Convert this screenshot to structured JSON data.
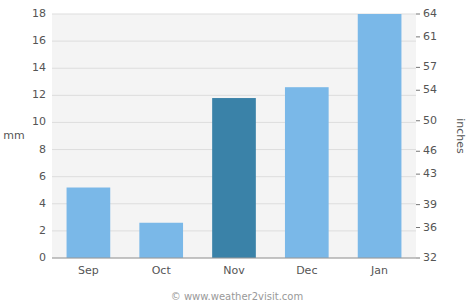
{
  "chart_data": {
    "type": "bar",
    "categories": [
      "Sep",
      "Oct",
      "Nov",
      "Dec",
      "Jan"
    ],
    "values": [
      5.2,
      2.6,
      11.8,
      12.6,
      18.0
    ],
    "colors": [
      "#7ab8e8",
      "#7ab8e8",
      "#3a82a8",
      "#7ab8e8",
      "#7ab8e8"
    ],
    "ylabel": "mm",
    "y2label": "inches",
    "ylim": [
      0,
      18
    ],
    "yticks": [
      0,
      2,
      4,
      6,
      8,
      10,
      12,
      14,
      16,
      18
    ],
    "y2lim": [
      32,
      64
    ],
    "y2ticks": [
      32,
      36,
      39,
      43,
      46,
      50,
      54,
      57,
      61,
      64
    ],
    "grid": true,
    "annotations": [
      "© www.weather2visit.com"
    ]
  }
}
